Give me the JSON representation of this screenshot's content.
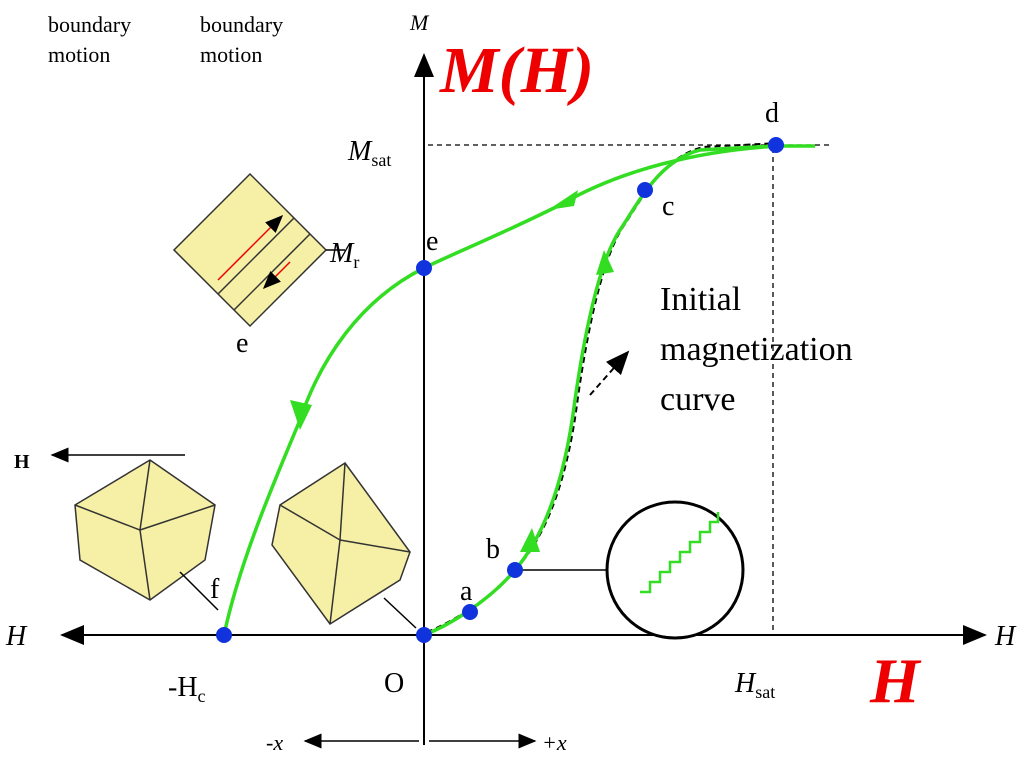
{
  "title": "M(H)",
  "top_notes": [
    {
      "lines": [
        "boundary",
        "motion"
      ]
    },
    {
      "lines": [
        "boundary",
        "motion"
      ]
    }
  ],
  "axes": {
    "m_label": "M",
    "h_left": "H",
    "h_right": "H",
    "big_h": "H",
    "field_arrow": "H",
    "origin": "O",
    "minus_x": "-x",
    "plus_x": "+x"
  },
  "labels": {
    "m_sat": {
      "base": "M",
      "sub": "sat"
    },
    "m_r": {
      "base": "M",
      "sub": "r"
    },
    "h_c": {
      "base": "-H",
      "sub": "c"
    },
    "h_sat": {
      "base": "H",
      "sub": "sat"
    }
  },
  "points": [
    "a",
    "b",
    "c",
    "d",
    "e",
    "f"
  ],
  "domain_label": "e",
  "annotation": [
    "Initial",
    "magnetization",
    "curve"
  ]
}
